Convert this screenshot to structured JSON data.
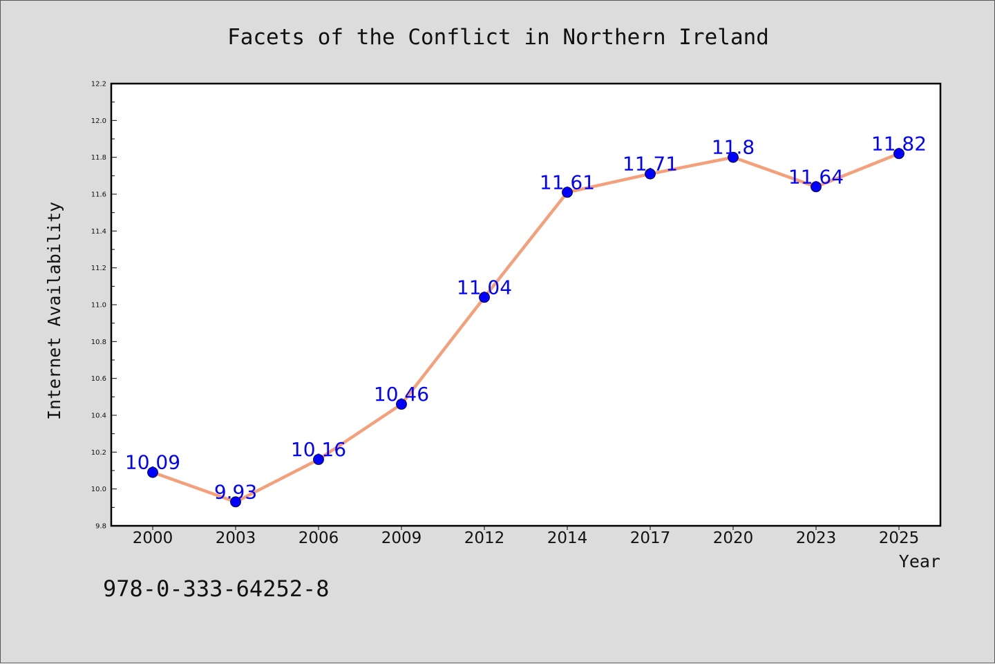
{
  "chart_data": {
    "type": "line",
    "title": "Facets of the Conflict in Northern Ireland",
    "xlabel": "Year",
    "ylabel": "Internet Availability",
    "categories": [
      "2000",
      "2003",
      "2006",
      "2009",
      "2012",
      "2014",
      "2017",
      "2020",
      "2023",
      "2025"
    ],
    "series": [
      {
        "values": [
          10.09,
          9.93,
          10.16,
          10.46,
          11.04,
          11.61,
          11.71,
          11.8,
          11.64,
          11.82
        ],
        "data_labels": [
          "10.09",
          "9.93",
          "10.16",
          "10.46",
          "11.04",
          "11.61",
          "11.71",
          "11.8",
          "11.64",
          "11.82"
        ],
        "line_color": "#f4a07a",
        "marker_color": "#0000ff"
      }
    ],
    "ylim": [
      9.8,
      12.2
    ],
    "yticks": [
      "9.8",
      "10.0",
      "10.2",
      "10.4",
      "10.6",
      "10.8",
      "11.0",
      "11.2",
      "11.4",
      "11.6",
      "11.8",
      "12.0",
      "12.2"
    ],
    "grid": false,
    "legend": "none",
    "label_color": "#0000ff"
  },
  "footer": {
    "code": "978-0-333-64252-8"
  },
  "colors": {
    "background": "#dcdcdc",
    "plot_area": "#ffffff",
    "axes": "#000000"
  }
}
